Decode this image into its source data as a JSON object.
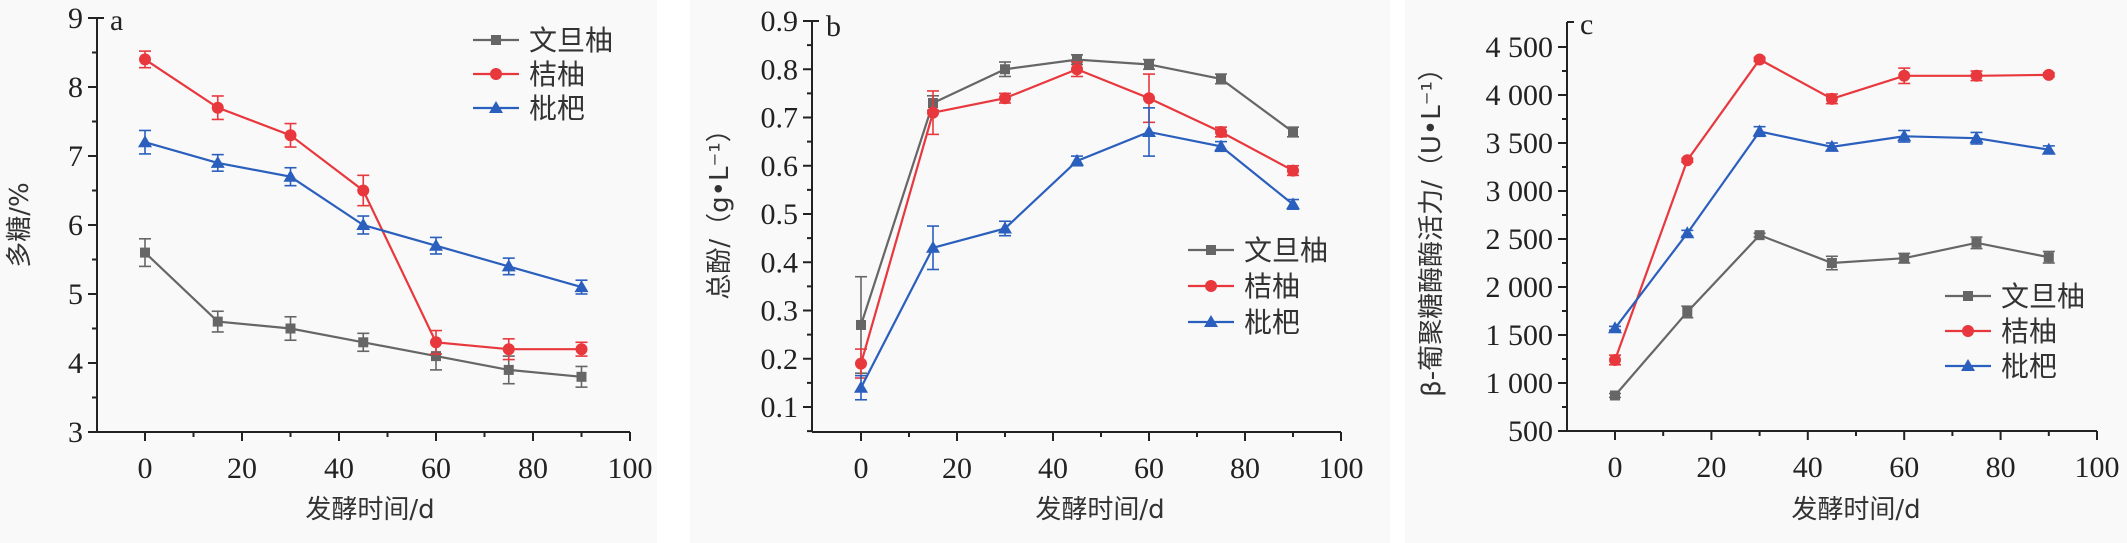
{
  "chart_data": [
    {
      "type": "line",
      "panel": "a",
      "xlabel": "发酵时间/d",
      "ylabel": "多糖/%",
      "xlim": [
        -10,
        100
      ],
      "ylim": [
        3,
        9
      ],
      "xticks": [
        0,
        20,
        40,
        60,
        80,
        100
      ],
      "yticks": [
        3,
        4,
        5,
        6,
        7,
        8,
        9
      ],
      "ytick_labels": [
        "3",
        "4",
        "5",
        "6",
        "7",
        "8",
        "9"
      ],
      "xtick_labels": [
        "0",
        "20",
        "40",
        "60",
        "80",
        "100"
      ],
      "grid": false,
      "legend_position": "top-right",
      "x": [
        0,
        15,
        30,
        45,
        60,
        75,
        90
      ],
      "series": [
        {
          "name": "文旦柚",
          "color": "#666666",
          "marker": "square",
          "values": [
            5.6,
            4.6,
            4.5,
            4.3,
            4.1,
            3.9,
            3.8
          ],
          "errors": [
            0.2,
            0.15,
            0.17,
            0.13,
            0.2,
            0.2,
            0.15
          ]
        },
        {
          "name": "桔柚",
          "color": "#e8383d",
          "marker": "circle",
          "values": [
            8.4,
            7.7,
            7.3,
            6.5,
            4.3,
            4.2,
            4.2
          ],
          "errors": [
            0.12,
            0.17,
            0.17,
            0.22,
            0.17,
            0.15,
            0.1
          ]
        },
        {
          "name": "枇杷",
          "color": "#2b5fbd",
          "marker": "triangle",
          "values": [
            7.2,
            6.9,
            6.7,
            6.0,
            5.7,
            5.4,
            5.1
          ],
          "errors": [
            0.17,
            0.12,
            0.13,
            0.13,
            0.12,
            0.12,
            0.1
          ]
        }
      ]
    },
    {
      "type": "line",
      "panel": "b",
      "xlabel": "发酵时间/d",
      "ylabel": "总酚/（g•L⁻¹）",
      "xlim": [
        -10,
        100
      ],
      "ylim": [
        0.05,
        0.9
      ],
      "xticks": [
        0,
        20,
        40,
        60,
        80,
        100
      ],
      "yticks": [
        0.1,
        0.2,
        0.3,
        0.4,
        0.5,
        0.6,
        0.7,
        0.8,
        0.9
      ],
      "ytick_labels": [
        "0.1",
        "0.2",
        "0.3",
        "0.4",
        "0.5",
        "0.6",
        "0.7",
        "0.8",
        "0.9"
      ],
      "xtick_labels": [
        "0",
        "20",
        "40",
        "60",
        "80",
        "100"
      ],
      "grid": false,
      "legend_position": "center-right",
      "x": [
        0,
        15,
        30,
        45,
        60,
        75,
        90
      ],
      "series": [
        {
          "name": "文旦柚",
          "color": "#666666",
          "marker": "square",
          "values": [
            0.27,
            0.73,
            0.8,
            0.82,
            0.81,
            0.78,
            0.67
          ],
          "errors": [
            0.1,
            0.015,
            0.015,
            0.01,
            0.01,
            0.01,
            0.01
          ]
        },
        {
          "name": "桔柚",
          "color": "#e8383d",
          "marker": "circle",
          "values": [
            0.19,
            0.71,
            0.74,
            0.8,
            0.74,
            0.67,
            0.59
          ],
          "errors": [
            0.03,
            0.045,
            0.01,
            0.015,
            0.05,
            0.01,
            0.01
          ]
        },
        {
          "name": "枇杷",
          "color": "#2b5fbd",
          "marker": "triangle",
          "values": [
            0.14,
            0.43,
            0.47,
            0.61,
            0.67,
            0.64,
            0.52
          ],
          "errors": [
            0.025,
            0.045,
            0.015,
            0.01,
            0.05,
            0.01,
            0.01
          ]
        }
      ]
    },
    {
      "type": "line",
      "panel": "c",
      "xlabel": "发酵时间/d",
      "ylabel": "β-葡聚糖酶酶活力/（U•L⁻¹）",
      "xlim": [
        -10,
        100
      ],
      "ylim": [
        500,
        4760
      ],
      "xticks": [
        0,
        20,
        40,
        60,
        80,
        100
      ],
      "yticks": [
        500,
        1000,
        1500,
        2000,
        2500,
        3000,
        3500,
        4000,
        4500
      ],
      "ytick_labels": [
        "500",
        "1 000",
        "1 500",
        "2 000",
        "2 500",
        "3 000",
        "3 500",
        "4 000",
        "4 500"
      ],
      "xtick_labels": [
        "0",
        "20",
        "40",
        "60",
        "80",
        "100"
      ],
      "grid": false,
      "legend_position": "center-right",
      "x": [
        0,
        15,
        30,
        45,
        60,
        75,
        90
      ],
      "series": [
        {
          "name": "文旦柚",
          "color": "#666666",
          "marker": "square",
          "values": [
            870,
            1740,
            2540,
            2250,
            2300,
            2460,
            2310
          ],
          "errors": [
            20,
            60,
            20,
            70,
            50,
            60,
            60
          ]
        },
        {
          "name": "桔柚",
          "color": "#e8383d",
          "marker": "circle",
          "values": [
            1240,
            3320,
            4370,
            3960,
            4200,
            4200,
            4210
          ],
          "errors": [
            50,
            20,
            20,
            50,
            80,
            50,
            20
          ]
        },
        {
          "name": "枇杷",
          "color": "#2b5fbd",
          "marker": "triangle",
          "values": [
            1570,
            2560,
            3620,
            3460,
            3570,
            3550,
            3430
          ],
          "errors": [
            20,
            30,
            50,
            40,
            60,
            60,
            40
          ]
        }
      ]
    }
  ]
}
